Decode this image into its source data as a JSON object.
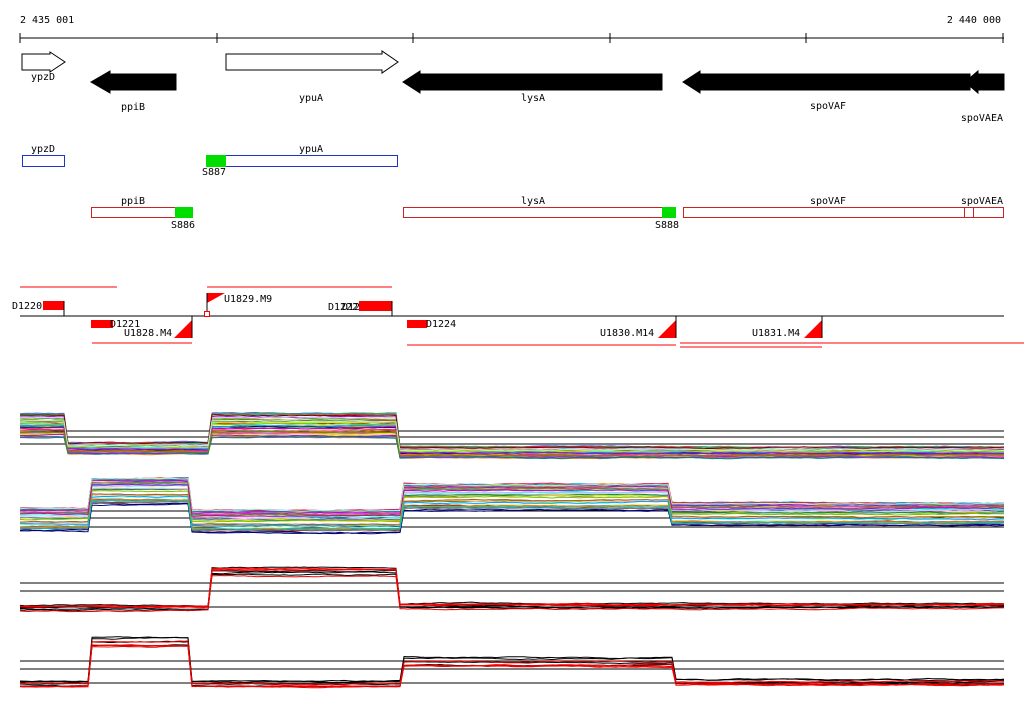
{
  "ruler": {
    "start_label": "2 435 001",
    "end_label": "2 440 000"
  },
  "colors": {
    "axis": "#000000",
    "gene_outline_plus": "#2233cc",
    "gene_outline_minus": "#cc2222",
    "signal_green": "#00dd00",
    "feature_red": "#ff0000",
    "profile_black": "#000000",
    "profile_red": "#ee0000"
  },
  "gene_arrows": [
    {
      "id": "ypzD",
      "label": "ypzD",
      "strand": "+",
      "filled": false
    },
    {
      "id": "ppiB",
      "label": "ppiB",
      "strand": "-",
      "filled": true
    },
    {
      "id": "ypuA",
      "label": "ypuA",
      "strand": "+",
      "filled": false
    },
    {
      "id": "lysA",
      "label": "lysA",
      "strand": "-",
      "filled": true
    },
    {
      "id": "spoVAF",
      "label": "spoVAF",
      "strand": "-",
      "filled": true
    },
    {
      "id": "spoVAEA",
      "label": "spoVAEA",
      "strand": "-",
      "filled": true
    }
  ],
  "plus_track": {
    "genes": [
      {
        "label": "ypzD"
      },
      {
        "label": "ypuA"
      }
    ],
    "signals": [
      {
        "label": "S887"
      }
    ]
  },
  "minus_track": {
    "genes": [
      {
        "label": "ppiB"
      },
      {
        "label": "lysA"
      },
      {
        "label": "spoVAF"
      },
      {
        "label": "spoVAEA"
      }
    ],
    "signals": [
      {
        "label": "S886"
      },
      {
        "label": "S888"
      }
    ]
  },
  "features": {
    "downshifts": [
      {
        "label": "D1220"
      },
      {
        "label": "D1221"
      },
      {
        "label": "D1222"
      },
      {
        "label": "D1223"
      },
      {
        "label": "D1224"
      }
    ],
    "upshifts": [
      {
        "label": "U1828.M4"
      },
      {
        "label": "U1829.M9"
      },
      {
        "label": "U1830.M14"
      },
      {
        "label": "U1831.M4"
      }
    ]
  },
  "profile_panels": [
    {
      "id": "plus-multi",
      "style": "multicolor"
    },
    {
      "id": "minus-multi",
      "style": "multicolor"
    },
    {
      "id": "plus-summary",
      "style": "black-red"
    },
    {
      "id": "minus-summary",
      "style": "black-red"
    }
  ]
}
